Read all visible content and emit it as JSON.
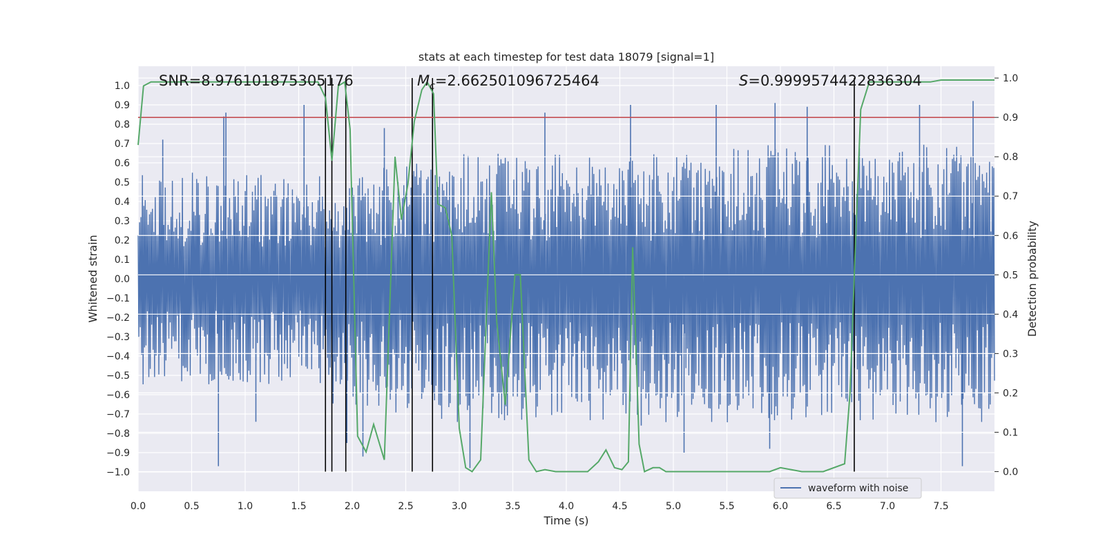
{
  "chart_data": {
    "type": "line",
    "title": "stats at each timestep for test data 18079 [signal=1]",
    "xlabel": "Time (s)",
    "ylabel_left": "Whitened strain",
    "ylabel_right": "Detection probability",
    "xlim": [
      0.0,
      8.0
    ],
    "ylim_left": [
      -1.1,
      1.1
    ],
    "ylim_right": [
      -0.05,
      1.03
    ],
    "x_ticks": [
      "0.0",
      "0.5",
      "1.0",
      "1.5",
      "2.0",
      "2.5",
      "3.0",
      "3.5",
      "4.0",
      "4.5",
      "5.0",
      "5.5",
      "6.0",
      "6.5",
      "7.0",
      "7.5"
    ],
    "y_left_ticks": [
      "1.0",
      "0.9",
      "0.8",
      "0.7",
      "0.6",
      "0.5",
      "0.4",
      "0.3",
      "0.2",
      "0.1",
      "0.0",
      "-0.1",
      "-0.2",
      "-0.3",
      "-0.4",
      "-0.5",
      "-0.6",
      "-0.7",
      "-0.8",
      "-0.9",
      "-1.0"
    ],
    "y_right_ticks": [
      "1.0",
      "0.9",
      "0.8",
      "0.7",
      "0.6",
      "0.5",
      "0.4",
      "0.3",
      "0.2",
      "0.1",
      "0.0"
    ],
    "annotations": {
      "snr": "SNR=8.976101875305176",
      "mc_symbol": "M",
      "mc_sub": "c",
      "mc_value": "=2.662501096725464",
      "s_symbol": "S",
      "s_value": "=0.9999574422836304"
    },
    "legend": [
      "waveform with noise"
    ],
    "threshold": {
      "axis": "right",
      "value": 0.9,
      "color": "#c44e52"
    },
    "vertical_lines_x": [
      1.75,
      1.81,
      1.94,
      2.56,
      2.75,
      6.69
    ],
    "waveform": {
      "name": "waveform with noise",
      "color": "#4c72b0",
      "samples": 1200,
      "envelope": [
        [
          0.0,
          0.55,
          -0.55
        ],
        [
          1.7,
          0.55,
          -0.55
        ],
        [
          1.75,
          0.38,
          -0.65
        ],
        [
          2.0,
          0.55,
          -0.7
        ],
        [
          2.5,
          0.6,
          -0.7
        ],
        [
          3.0,
          0.65,
          -0.75
        ],
        [
          4.0,
          0.65,
          -0.75
        ],
        [
          5.0,
          0.65,
          -0.75
        ],
        [
          6.0,
          0.7,
          -0.75
        ],
        [
          7.0,
          0.7,
          -0.75
        ],
        [
          8.0,
          0.7,
          -0.75
        ]
      ],
      "peaks": [
        [
          0.23,
          0.72
        ],
        [
          0.8,
          0.84
        ],
        [
          0.82,
          0.86
        ],
        [
          1.55,
          0.9
        ],
        [
          2.3,
          0.78
        ],
        [
          2.75,
          0.87
        ],
        [
          3.8,
          0.86
        ],
        [
          4.6,
          0.9
        ],
        [
          5.4,
          0.9
        ],
        [
          5.95,
          0.91
        ],
        [
          6.25,
          0.89
        ],
        [
          7.3,
          0.9
        ],
        [
          7.8,
          0.92
        ],
        [
          0.75,
          -0.97
        ],
        [
          1.1,
          -0.74
        ],
        [
          3.1,
          -0.98
        ],
        [
          4.7,
          -0.76
        ],
        [
          5.1,
          -0.9
        ],
        [
          5.9,
          -0.88
        ],
        [
          7.7,
          -0.97
        ],
        [
          2.1,
          -0.92
        ],
        [
          1.95,
          -0.85
        ]
      ]
    },
    "probability": {
      "name": "detection probability",
      "color": "#55a868",
      "x": [
        0.0,
        0.05,
        0.12,
        0.3,
        0.6,
        1.0,
        1.5,
        1.68,
        1.75,
        1.81,
        1.87,
        1.93,
        1.98,
        2.05,
        2.13,
        2.2,
        2.3,
        2.4,
        2.46,
        2.52,
        2.58,
        2.65,
        2.7,
        2.76,
        2.8,
        2.87,
        2.93,
        3.0,
        3.06,
        3.12,
        3.2,
        3.3,
        3.35,
        3.43,
        3.52,
        3.57,
        3.65,
        3.72,
        3.8,
        3.9,
        4.0,
        4.1,
        4.2,
        4.3,
        4.37,
        4.45,
        4.52,
        4.58,
        4.62,
        4.68,
        4.73,
        4.81,
        4.87,
        4.93,
        5.0,
        5.2,
        5.5,
        5.9,
        6.0,
        6.2,
        6.4,
        6.6,
        6.65,
        6.69,
        6.75,
        6.83,
        7.0,
        7.4,
        7.5,
        7.8,
        8.0
      ],
      "y": [
        0.83,
        0.98,
        0.99,
        0.99,
        0.99,
        0.99,
        0.99,
        0.99,
        0.95,
        0.79,
        0.98,
        0.99,
        0.87,
        0.09,
        0.05,
        0.12,
        0.03,
        0.8,
        0.64,
        0.73,
        0.89,
        0.97,
        0.99,
        0.96,
        0.68,
        0.67,
        0.6,
        0.11,
        0.01,
        0.0,
        0.03,
        0.71,
        0.38,
        0.17,
        0.5,
        0.5,
        0.03,
        0.0,
        0.005,
        0.0,
        0.0,
        0.0,
        0.0,
        0.025,
        0.055,
        0.01,
        0.005,
        0.025,
        0.57,
        0.07,
        0.0,
        0.01,
        0.01,
        0.0,
        0.0,
        0.0,
        0.0,
        0.0,
        0.01,
        0.0,
        0.0,
        0.02,
        0.2,
        0.5,
        0.92,
        0.99,
        0.99,
        0.99,
        0.995,
        0.995,
        0.995
      ]
    }
  }
}
